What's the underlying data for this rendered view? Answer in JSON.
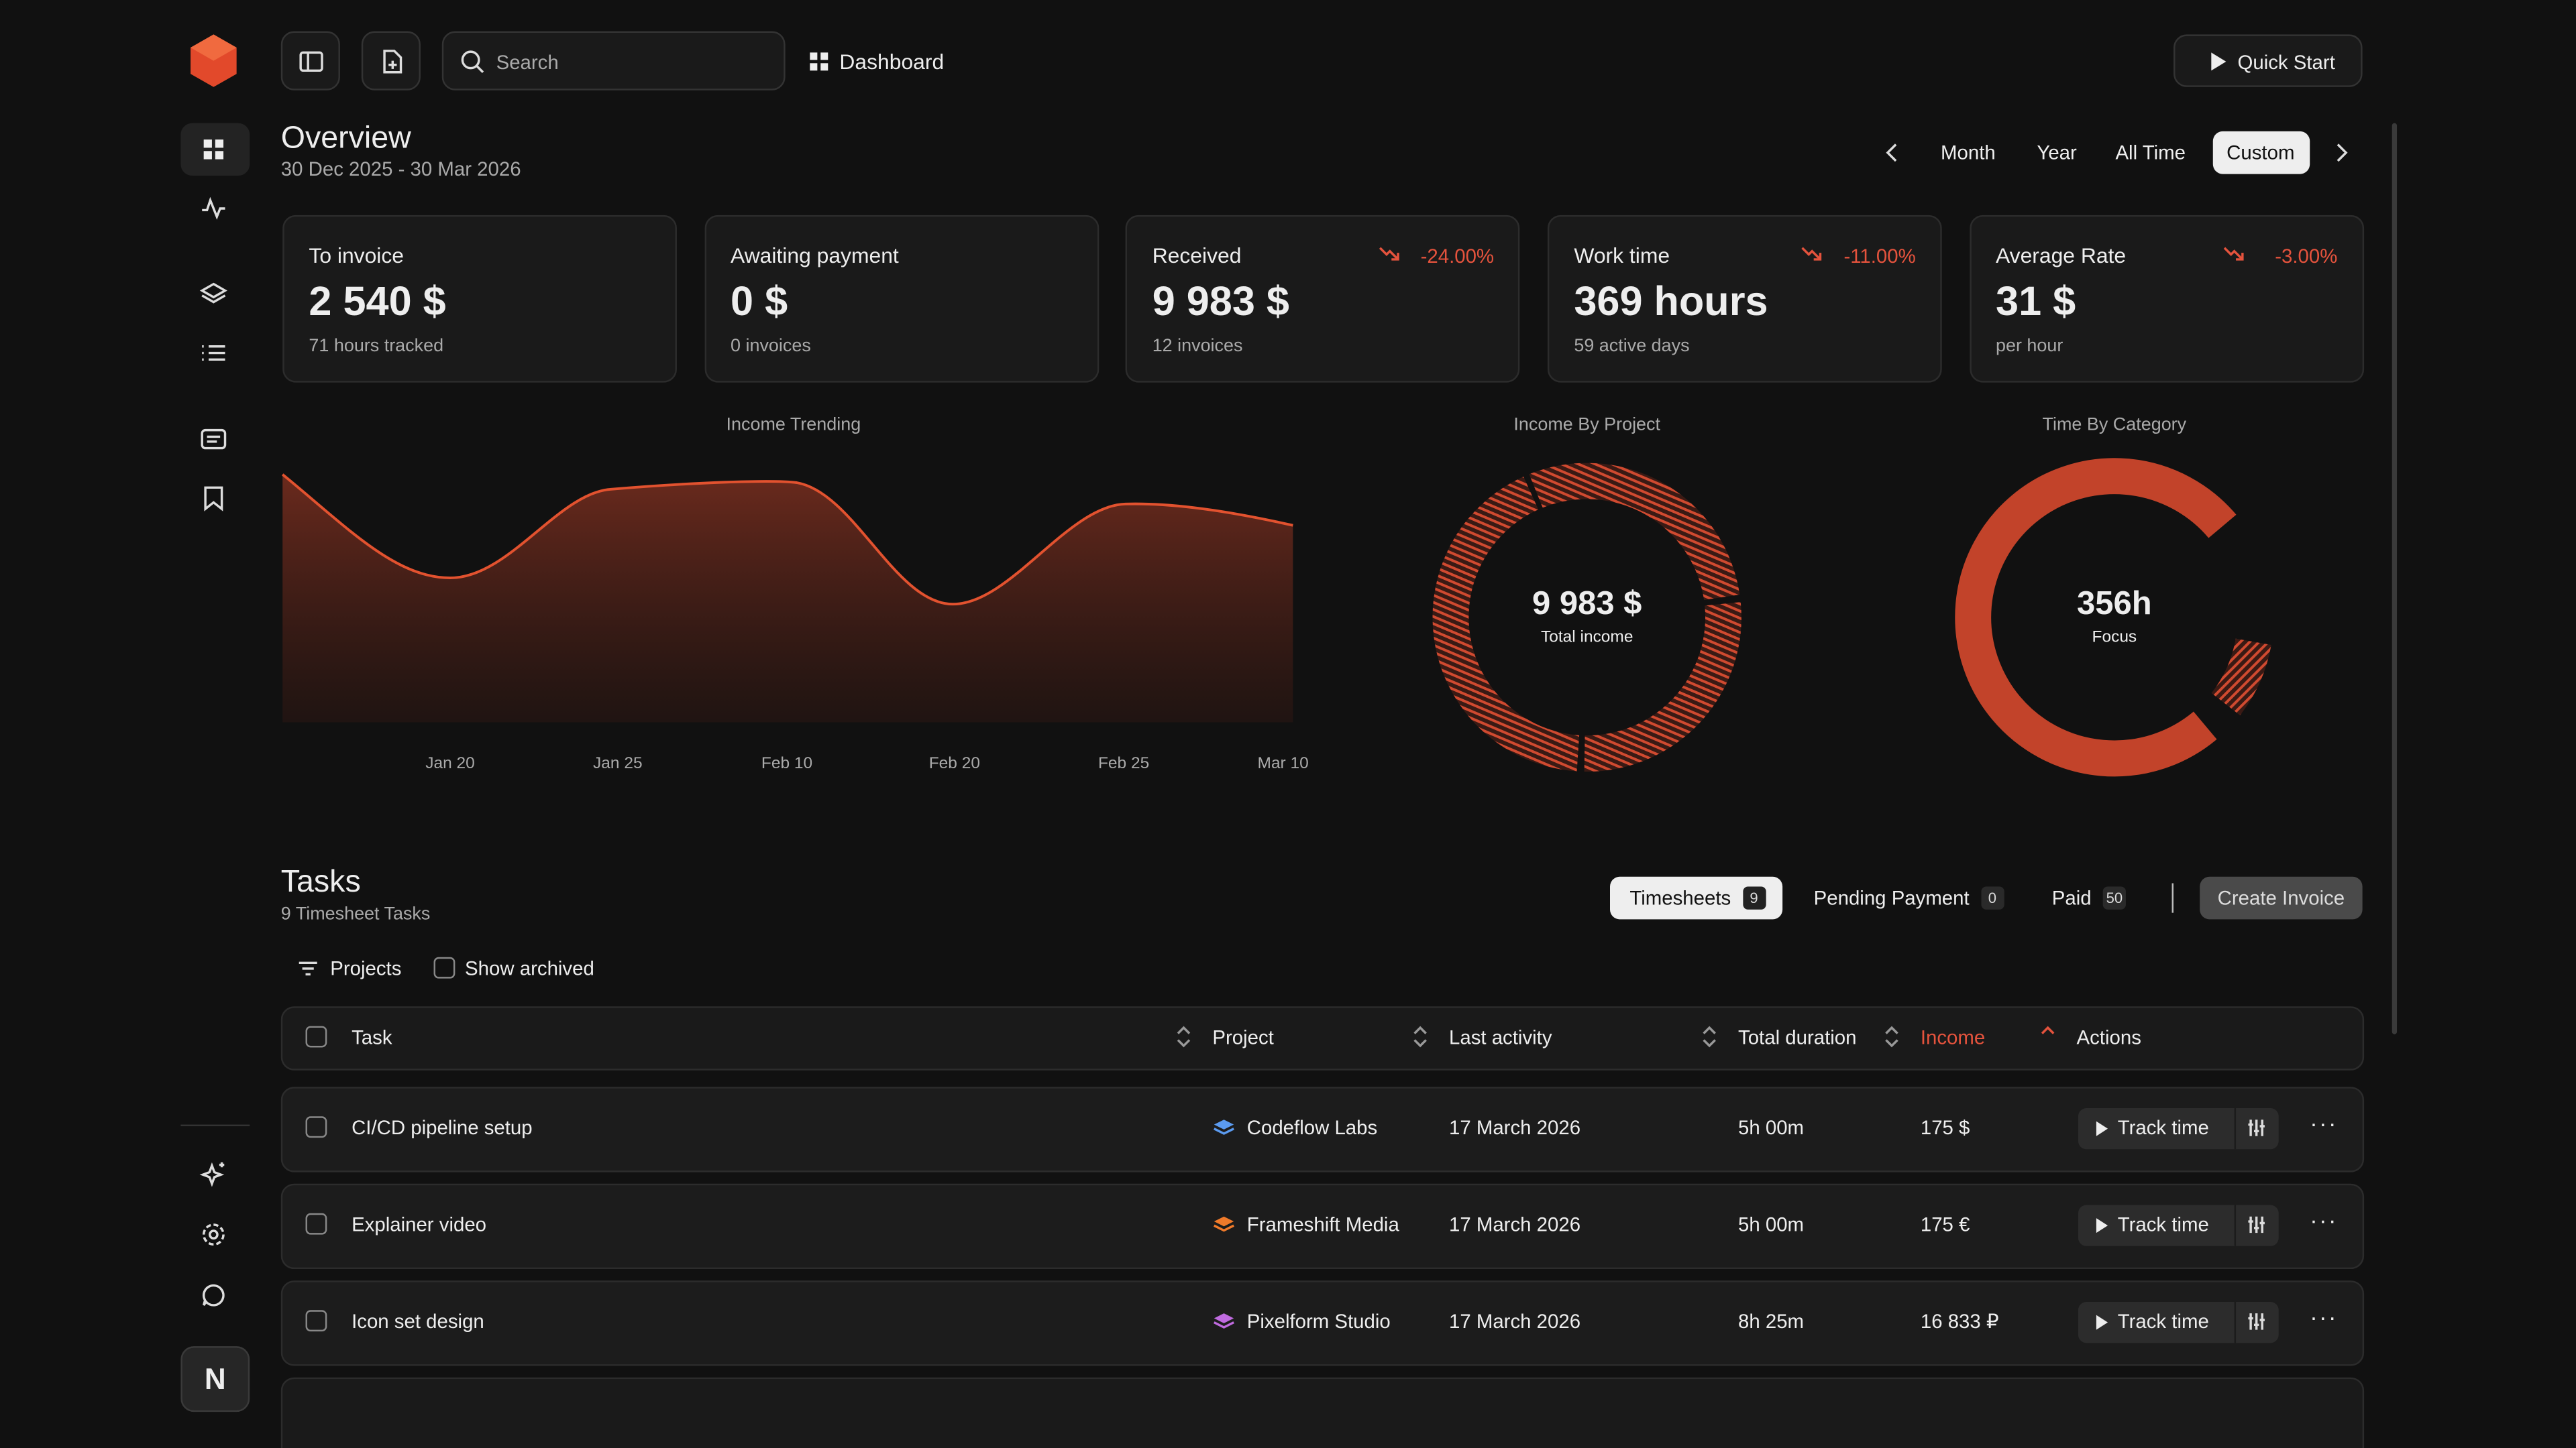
{
  "sidebar": {
    "avatar": "N"
  },
  "header": {
    "search_placeholder": "Search",
    "breadcrumb": "Dashboard",
    "quick_start": "Quick Start"
  },
  "overview": {
    "title": "Overview",
    "date_range": "30 Dec 2025 - 30 Mar 2026",
    "periods": [
      "Month",
      "Year",
      "All Time",
      "Custom"
    ]
  },
  "cards": [
    {
      "label": "To invoice",
      "value": "2 540 $",
      "sub": "71 hours tracked"
    },
    {
      "label": "Awaiting payment",
      "value": "0 $",
      "sub": "0 invoices"
    },
    {
      "label": "Received",
      "value": "9 983 $",
      "sub": "12 invoices",
      "change": "-24.00%"
    },
    {
      "label": "Work time",
      "value": "369 hours",
      "sub": "59 active days",
      "change": "-11.00%"
    },
    {
      "label": "Average Rate",
      "value": "31 $",
      "sub": "per hour",
      "change": "-3.00%"
    }
  ],
  "charts": {
    "income_trending": {
      "title": "Income Trending",
      "x_labels": [
        "Jan 20",
        "Jan 25",
        "Feb 10",
        "Feb 20",
        "Feb 25",
        "Mar 10"
      ]
    },
    "income_by_project": {
      "title": "Income By Project",
      "center_value": "9 983 $",
      "center_label": "Total income"
    },
    "time_by_category": {
      "title": "Time By Category",
      "center_value": "356h",
      "center_label": "Focus"
    }
  },
  "tasks": {
    "title": "Tasks",
    "subtitle": "9 Timesheet Tasks",
    "tabs": [
      {
        "label": "Timesheets",
        "count": "9"
      },
      {
        "label": "Pending Payment",
        "count": "0"
      },
      {
        "label": "Paid",
        "count": "50"
      }
    ],
    "create_invoice": "Create Invoice",
    "filters": {
      "projects": "Projects",
      "show_archived": "Show archived"
    },
    "columns": [
      "Task",
      "Project",
      "Last activity",
      "Total duration",
      "Income",
      "Actions"
    ],
    "track_time": "Track time",
    "rows": [
      {
        "task": "CI/CD pipeline setup",
        "project": "Codeflow Labs",
        "icon_color": "#5b9bf0",
        "last_activity": "17 March 2026",
        "duration": "5h 00m",
        "income": "175 $"
      },
      {
        "task": "Explainer video",
        "project": "Frameshift Media",
        "icon_color": "#f07a2a",
        "last_activity": "17 March 2026",
        "duration": "5h 00m",
        "income": "175 €"
      },
      {
        "task": "Icon set design",
        "project": "Pixelform Studio",
        "icon_color": "#c06be0",
        "last_activity": "17 March 2026",
        "duration": "8h 25m",
        "income": "16 833 ₽"
      }
    ]
  }
}
